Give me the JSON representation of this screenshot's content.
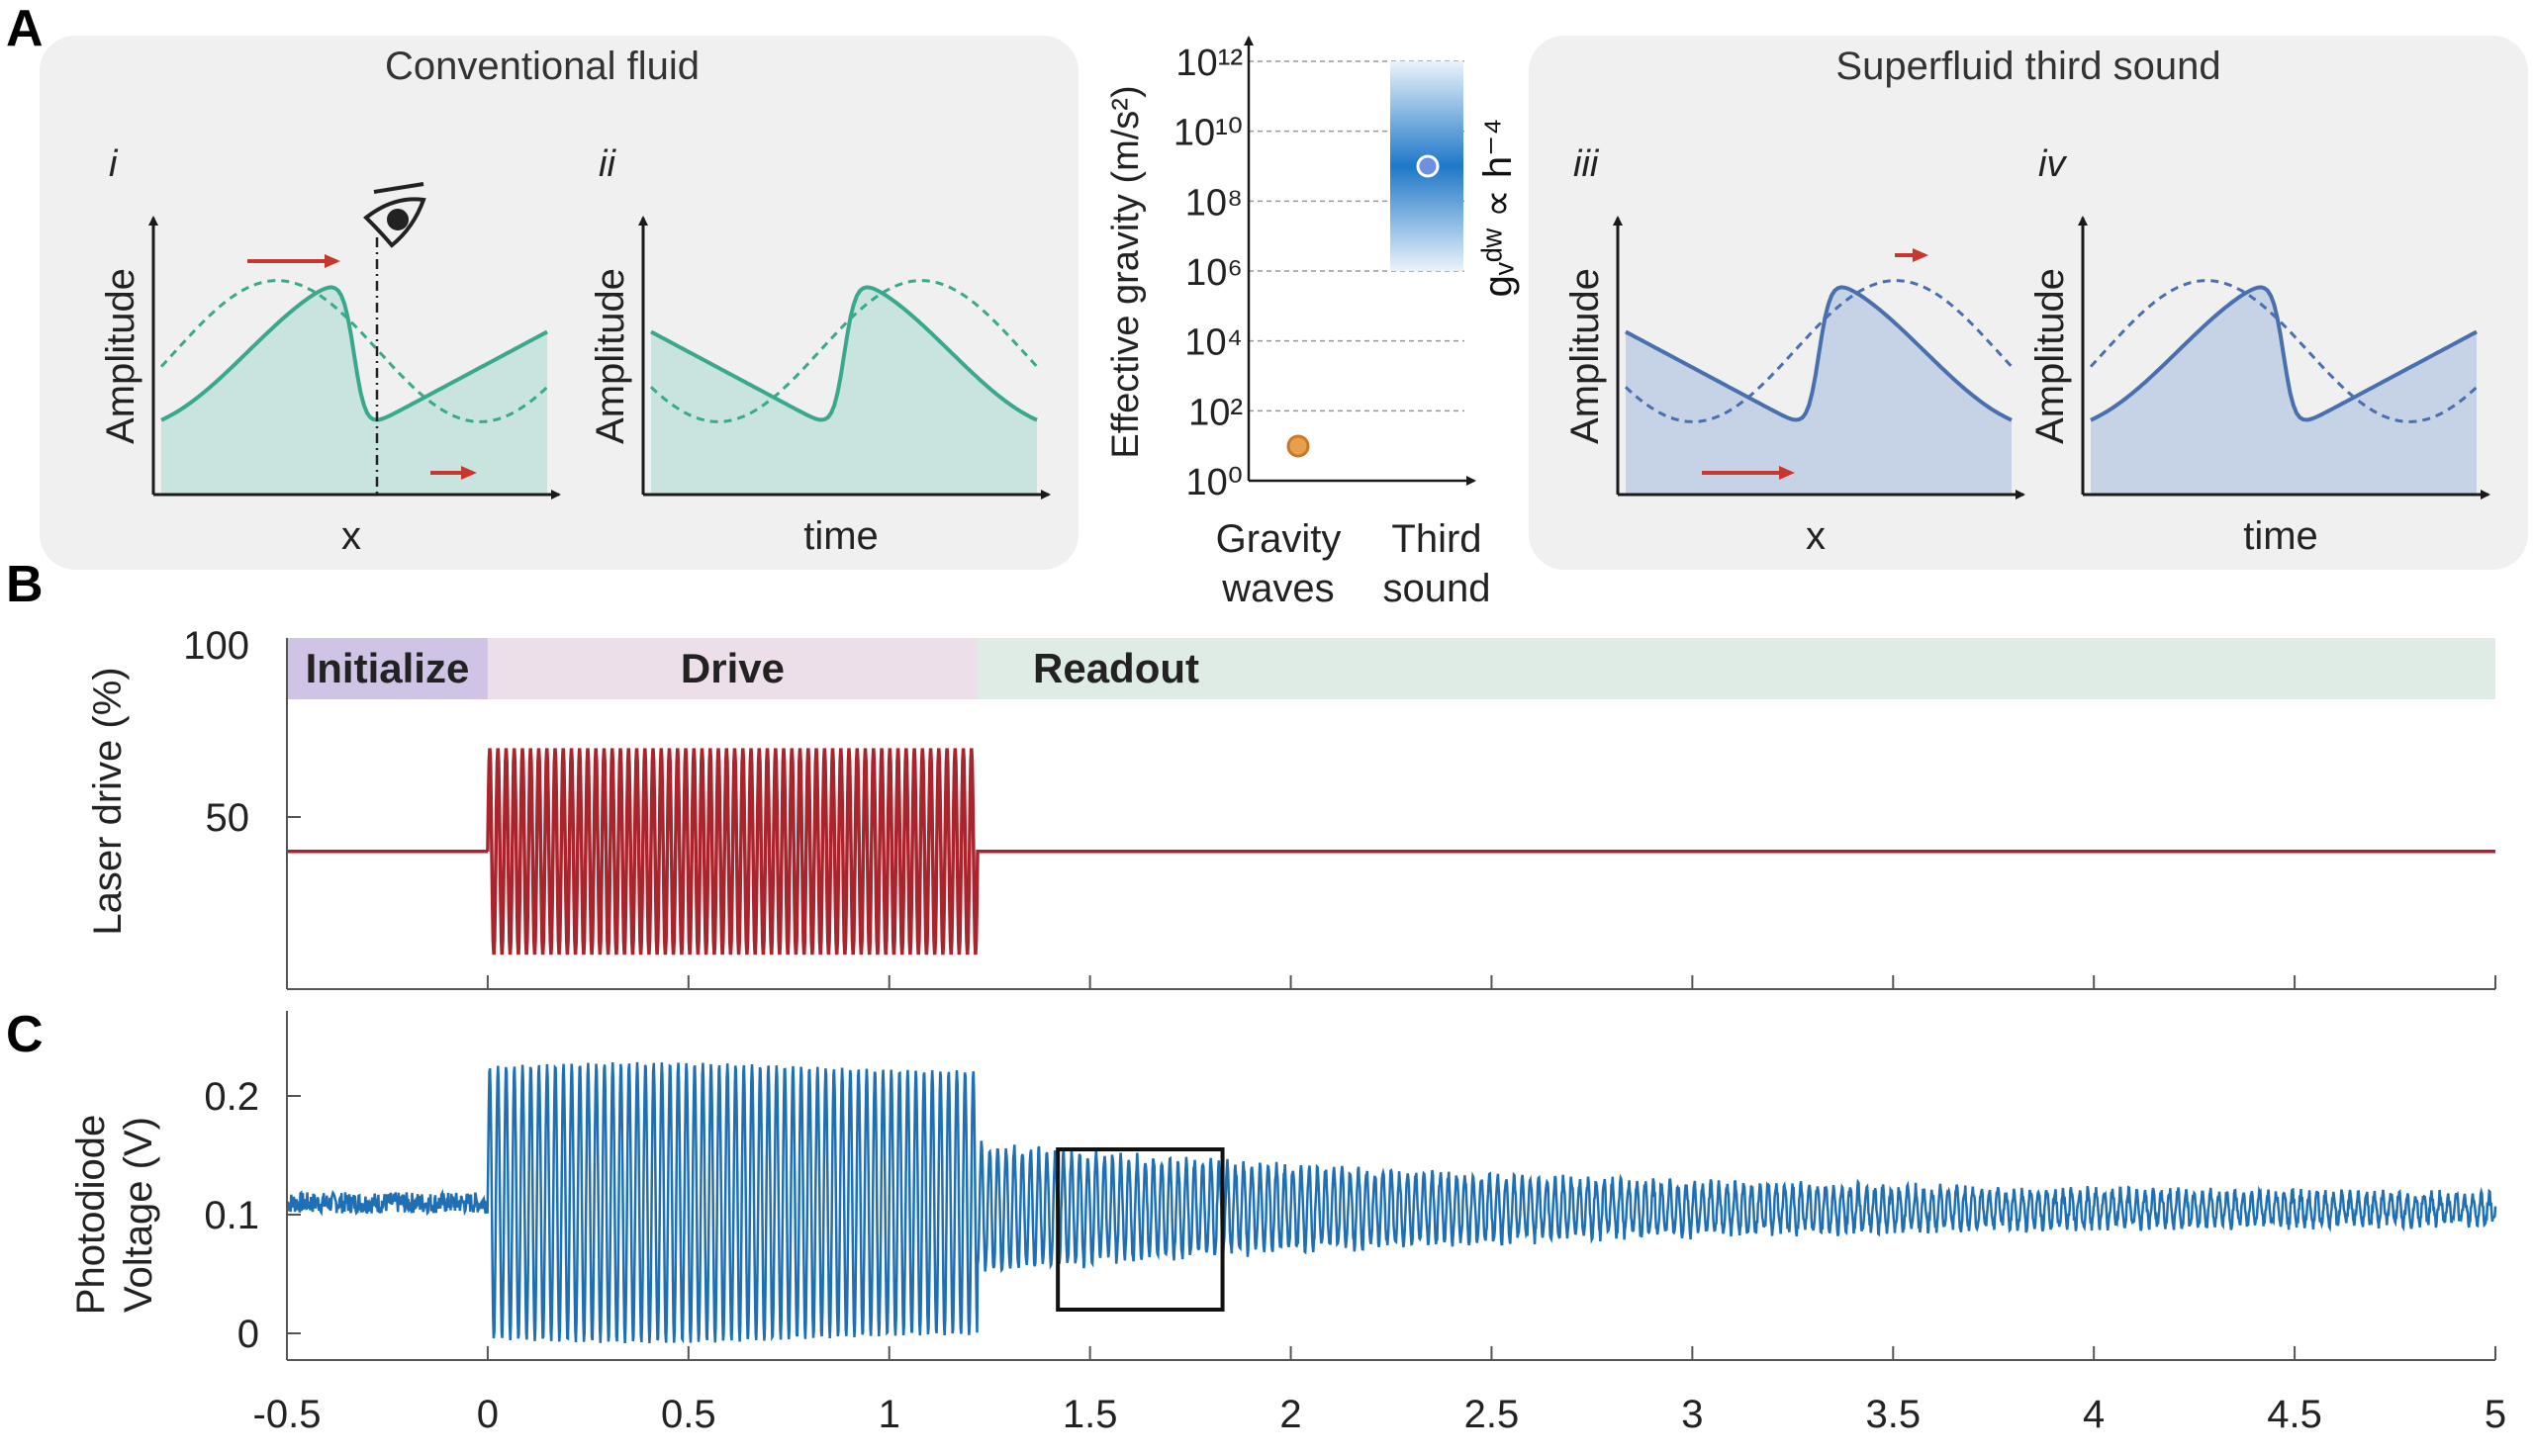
{
  "panel_labels": [
    "A",
    "B",
    "C"
  ],
  "panel_a": {
    "left_box_title": "Conventional fluid",
    "right_box_title": "Superfluid third sound",
    "subpanels": [
      {
        "id": "i",
        "ylabel": "Amplitude",
        "xlabel": "x"
      },
      {
        "id": "ii",
        "ylabel": "Amplitude",
        "xlabel": "time"
      },
      {
        "id": "iii",
        "ylabel": "Amplitude",
        "xlabel": "x"
      },
      {
        "id": "iv",
        "ylabel": "Amplitude",
        "xlabel": "time"
      }
    ],
    "observer_icon": "eye-icon",
    "colors": {
      "conventional": "#3aa88c",
      "superfluid": "#4a6fae",
      "arrow": "#c8372d"
    }
  },
  "chart_data": [
    {
      "type": "scatter",
      "ylabel": "Effective gravity (m/s²)",
      "yscale": "log",
      "yticks": [
        "10⁰",
        "10²",
        "10⁴",
        "10⁶",
        "10⁸",
        "10¹⁰",
        "10¹²"
      ],
      "ylim": [
        1,
        1000000000000.0
      ],
      "categories": [
        "Gravity waves",
        "Third sound"
      ],
      "points": [
        {
          "category": "Gravity waves",
          "value": 9.8,
          "color": "#e8a04c"
        },
        {
          "category": "Third sound",
          "value": 1000000000.0,
          "color": "#6f8fe0"
        }
      ],
      "band": {
        "category": "Third sound",
        "min": 1000000.0,
        "max": 1000000000000.0,
        "label": "gᵥᵈʷ ∝ h⁻⁴"
      },
      "grid": "horizontal dashed"
    },
    {
      "type": "line",
      "ylabel": "Laser drive (%)",
      "yticks": [
        50,
        100
      ],
      "phases": [
        {
          "label": "Initialize",
          "start": -0.5,
          "end": 0,
          "color": "#cfc3e6"
        },
        {
          "label": "Drive",
          "start": 0,
          "end": 1.22,
          "color": "#ecdfea"
        },
        {
          "label": "Readout",
          "start": 1.22,
          "end": 5,
          "color": "#dfece5"
        }
      ],
      "baseline": 40,
      "drive": {
        "start": 0,
        "end": 1.22,
        "min": 10,
        "max": 70,
        "cycles": 60
      },
      "color": "#a9242c"
    },
    {
      "type": "line",
      "ylabel": "Photodiode\nVoltage (V)",
      "yticks": [
        0,
        0.1,
        0.2
      ],
      "ylim": [
        -0.02,
        0.27
      ],
      "x": [
        -0.5,
        0,
        1.22,
        5
      ],
      "xticks": [
        "-0.5",
        "0",
        "0.5",
        "1",
        "1.5",
        "2",
        "2.5",
        "3",
        "3.5",
        "4",
        "4.5",
        "5"
      ],
      "xlim": [
        -0.5,
        5
      ],
      "baseline": 0.11,
      "drive_amplitude": 0.115,
      "readout_amplitude_start": 0.045,
      "readout_amplitude_end": 0.008,
      "highlight_box": {
        "x": [
          1.42,
          1.83
        ],
        "y": [
          0.02,
          0.155
        ]
      },
      "color": "#1f6fb5"
    }
  ]
}
